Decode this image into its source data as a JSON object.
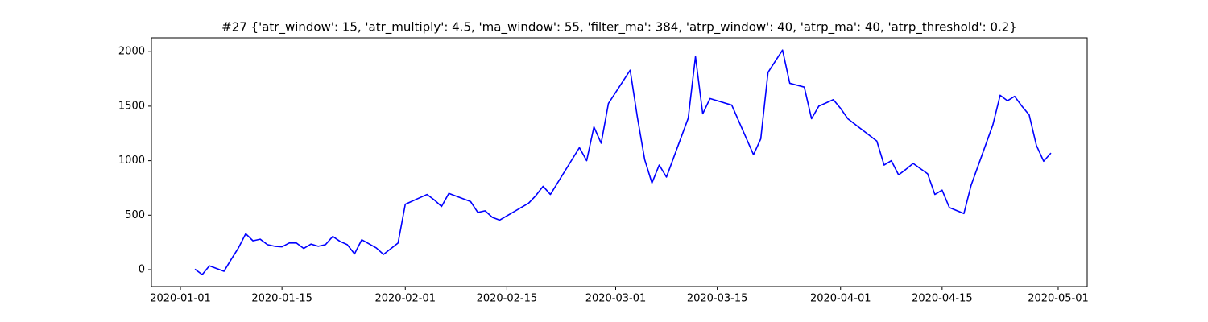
{
  "chart_data": {
    "type": "line",
    "title": "#27 {'atr_window': 15, 'atr_multiply': 4.5, 'ma_window': 55, 'filter_ma': 384, 'atrp_window': 40, 'atrp_ma': 40, 'atrp_threshold': 0.2}",
    "color": "#0000ff",
    "x": [
      "2020-01-03",
      "2020-01-04",
      "2020-01-05",
      "2020-01-07",
      "2020-01-08",
      "2020-01-09",
      "2020-01-10",
      "2020-01-11",
      "2020-01-12",
      "2020-01-13",
      "2020-01-14",
      "2020-01-15",
      "2020-01-16",
      "2020-01-17",
      "2020-01-18",
      "2020-01-19",
      "2020-01-20",
      "2020-01-21",
      "2020-01-22",
      "2020-01-23",
      "2020-01-24",
      "2020-01-25",
      "2020-01-26",
      "2020-01-28",
      "2020-01-29",
      "2020-01-31",
      "2020-02-01",
      "2020-02-04",
      "2020-02-05",
      "2020-02-06",
      "2020-02-07",
      "2020-02-10",
      "2020-02-11",
      "2020-02-12",
      "2020-02-13",
      "2020-02-14",
      "2020-02-18",
      "2020-02-19",
      "2020-02-20",
      "2020-02-21",
      "2020-02-25",
      "2020-02-26",
      "2020-02-27",
      "2020-02-28",
      "2020-02-29",
      "2020-03-03",
      "2020-03-04",
      "2020-03-05",
      "2020-03-06",
      "2020-03-07",
      "2020-03-08",
      "2020-03-11",
      "2020-03-12",
      "2020-03-13",
      "2020-03-14",
      "2020-03-17",
      "2020-03-20",
      "2020-03-21",
      "2020-03-22",
      "2020-03-24",
      "2020-03-25",
      "2020-03-27",
      "2020-03-28",
      "2020-03-29",
      "2020-03-31",
      "2020-04-01",
      "2020-04-02",
      "2020-04-06",
      "2020-04-07",
      "2020-04-08",
      "2020-04-09",
      "2020-04-10",
      "2020-04-11",
      "2020-04-13",
      "2020-04-14",
      "2020-04-15",
      "2020-04-16",
      "2020-04-18",
      "2020-04-19",
      "2020-04-22",
      "2020-04-23",
      "2020-04-24",
      "2020-04-25",
      "2020-04-26",
      "2020-04-27",
      "2020-04-28",
      "2020-04-29",
      "2020-04-30"
    ],
    "values": [
      5,
      -45,
      35,
      -15,
      95,
      200,
      330,
      265,
      280,
      230,
      215,
      210,
      245,
      245,
      195,
      235,
      215,
      230,
      305,
      260,
      230,
      145,
      275,
      200,
      140,
      245,
      600,
      690,
      640,
      580,
      700,
      625,
      525,
      540,
      480,
      455,
      610,
      680,
      765,
      690,
      1120,
      1000,
      1310,
      1160,
      1525,
      1830,
      1395,
      1010,
      795,
      960,
      850,
      1390,
      1955,
      1430,
      1570,
      1510,
      1055,
      1200,
      1810,
      2015,
      1710,
      1675,
      1385,
      1500,
      1560,
      1480,
      1385,
      1180,
      960,
      1000,
      870,
      920,
      975,
      880,
      690,
      730,
      570,
      515,
      775,
      1330,
      1600,
      1550,
      1590,
      1500,
      1420,
      1140,
      995,
      1070
    ],
    "xlim": [
      "2019-12-28",
      "2020-05-05"
    ],
    "xticks": [
      "2020-01-01",
      "2020-01-15",
      "2020-02-01",
      "2020-02-15",
      "2020-03-01",
      "2020-03-15",
      "2020-04-01",
      "2020-04-15",
      "2020-05-01"
    ],
    "ylim": [
      -155,
      2127
    ],
    "yticks": [
      0,
      500,
      1000,
      1500,
      2000
    ]
  }
}
